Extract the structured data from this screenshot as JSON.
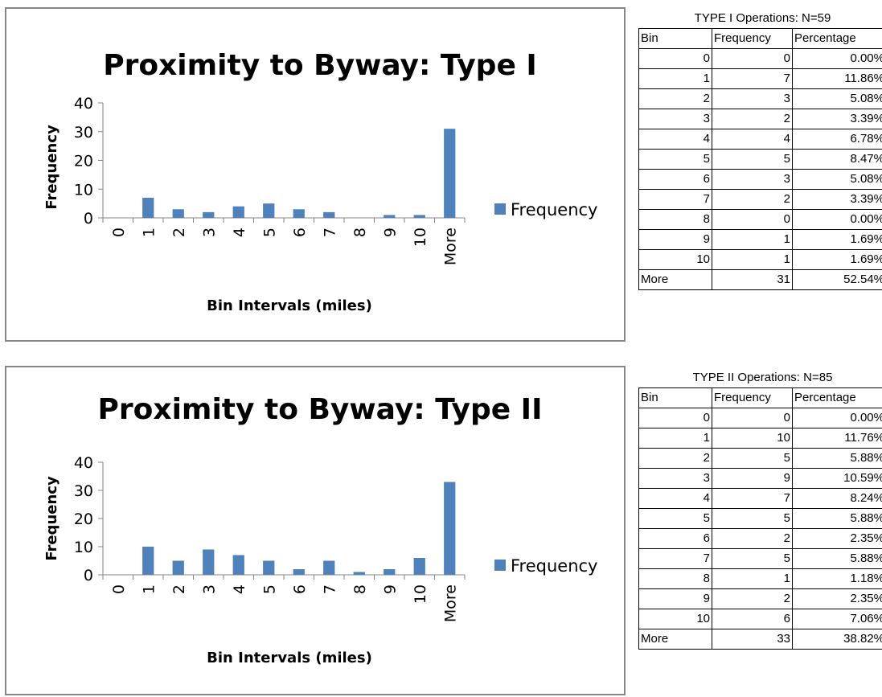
{
  "colors": {
    "bar": "#4f81bd",
    "axis": "#868686",
    "border": "#868686"
  },
  "chart_data": [
    {
      "type": "bar",
      "title": "Proximity to Byway: Type I",
      "xlabel": "Bin Intervals (miles)",
      "ylabel": "Frequency",
      "categories": [
        "0",
        "1",
        "2",
        "3",
        "4",
        "5",
        "6",
        "7",
        "8",
        "9",
        "10",
        "More"
      ],
      "series": [
        {
          "name": "Frequency",
          "values": [
            0,
            7,
            3,
            2,
            4,
            5,
            3,
            2,
            0,
            1,
            1,
            31
          ]
        }
      ],
      "yticks": [
        "0",
        "10",
        "20",
        "30",
        "40"
      ],
      "ylim": [
        0,
        40
      ],
      "legend": "right",
      "grid": false
    },
    {
      "type": "bar",
      "title": "Proximity to Byway: Type II",
      "xlabel": "Bin Intervals (miles)",
      "ylabel": "Frequency",
      "categories": [
        "0",
        "1",
        "2",
        "3",
        "4",
        "5",
        "6",
        "7",
        "8",
        "9",
        "10",
        "More"
      ],
      "series": [
        {
          "name": "Frequency",
          "values": [
            0,
            10,
            5,
            9,
            7,
            5,
            2,
            5,
            1,
            2,
            6,
            33
          ]
        }
      ],
      "yticks": [
        "0",
        "10",
        "20",
        "30",
        "40"
      ],
      "ylim": [
        0,
        40
      ],
      "legend": "right",
      "grid": false
    }
  ],
  "tables": [
    {
      "caption": "TYPE I Operations: N=59",
      "headers": [
        "Bin",
        "Frequency",
        "Percentage"
      ],
      "rows": [
        [
          "0",
          "0",
          "0.00%"
        ],
        [
          "1",
          "7",
          "11.86%"
        ],
        [
          "2",
          "3",
          "5.08%"
        ],
        [
          "3",
          "2",
          "3.39%"
        ],
        [
          "4",
          "4",
          "6.78%"
        ],
        [
          "5",
          "5",
          "8.47%"
        ],
        [
          "6",
          "3",
          "5.08%"
        ],
        [
          "7",
          "2",
          "3.39%"
        ],
        [
          "8",
          "0",
          "0.00%"
        ],
        [
          "9",
          "1",
          "1.69%"
        ],
        [
          "10",
          "1",
          "1.69%"
        ],
        [
          "More",
          "31",
          "52.54%"
        ]
      ]
    },
    {
      "caption": "TYPE II Operations: N=85",
      "headers": [
        "Bin",
        "Frequency",
        "Percentage"
      ],
      "rows": [
        [
          "0",
          "0",
          "0.00%"
        ],
        [
          "1",
          "10",
          "11.76%"
        ],
        [
          "2",
          "5",
          "5.88%"
        ],
        [
          "3",
          "9",
          "10.59%"
        ],
        [
          "4",
          "7",
          "8.24%"
        ],
        [
          "5",
          "5",
          "5.88%"
        ],
        [
          "6",
          "2",
          "2.35%"
        ],
        [
          "7",
          "5",
          "5.88%"
        ],
        [
          "8",
          "1",
          "1.18%"
        ],
        [
          "9",
          "2",
          "2.35%"
        ],
        [
          "10",
          "6",
          "7.06%"
        ],
        [
          "More",
          "33",
          "38.82%"
        ]
      ]
    }
  ]
}
